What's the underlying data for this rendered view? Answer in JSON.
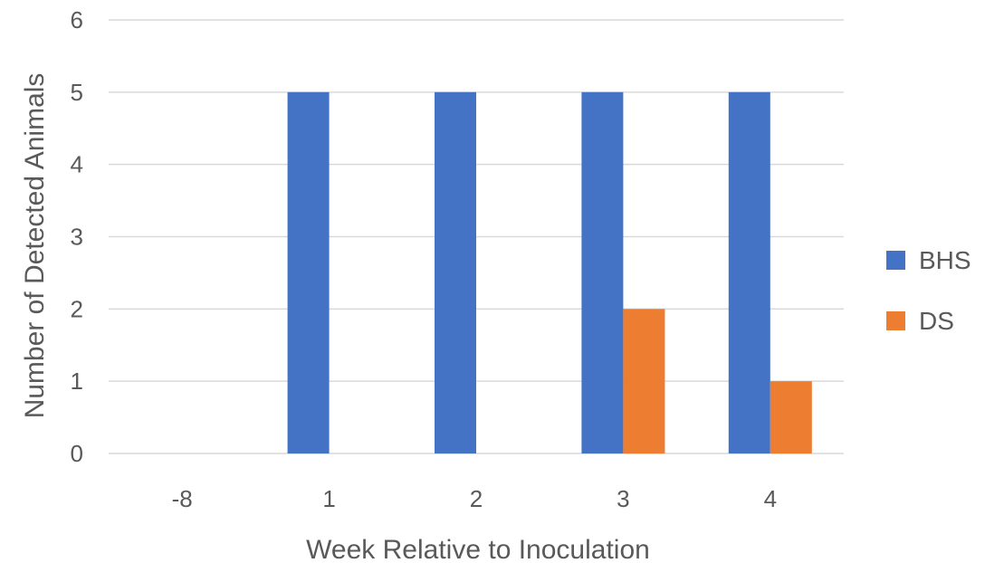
{
  "chart_data": {
    "type": "bar",
    "title": "",
    "xlabel": "Week Relative to Inoculation",
    "ylabel": "Number of Detected Animals",
    "categories": [
      "-8",
      "1",
      "2",
      "3",
      "4"
    ],
    "series": [
      {
        "name": "BHS",
        "color": "#4472c4",
        "values": [
          0,
          5,
          5,
          5,
          5
        ]
      },
      {
        "name": "DS",
        "color": "#ed7d31",
        "values": [
          0,
          0,
          0,
          2,
          1
        ]
      }
    ],
    "ylim": [
      0,
      6
    ],
    "yticks": [
      "0",
      "1",
      "2",
      "3",
      "4",
      "5",
      "6"
    ],
    "grid": true,
    "legend_position": "right"
  }
}
